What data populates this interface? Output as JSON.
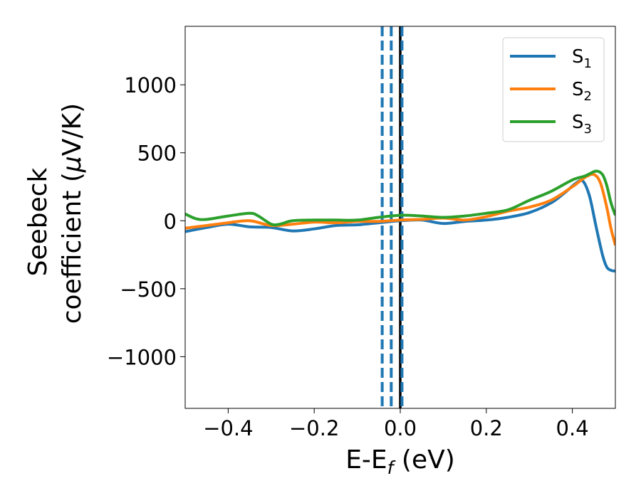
{
  "chart_data": {
    "type": "line",
    "title": "",
    "xlabel": {
      "base": "E-E",
      "sub": "f",
      "unit": " (eV)"
    },
    "ylabel": {
      "line1": "Seebeck",
      "line2_prefix": "coefficient  (",
      "mu": "μ",
      "line2_suffix": "V/K)"
    },
    "xlim": [
      -0.5,
      0.5
    ],
    "ylim": [
      -1380,
      1430
    ],
    "x_ticks": [
      -0.4,
      -0.2,
      0.0,
      0.2,
      0.4
    ],
    "x_tick_labels": [
      "−0.4",
      "−0.2",
      "0.0",
      "0.2",
      "0.4"
    ],
    "y_ticks": [
      -1000,
      -500,
      0,
      500,
      1000
    ],
    "y_tick_labels": [
      "−1000",
      "−500",
      "0",
      "500",
      "1000"
    ],
    "grid": false,
    "legend_position": "top-right",
    "vlines": [
      {
        "x": 0.0,
        "color": "#000000",
        "style": "solid"
      },
      {
        "x": -0.042,
        "color": "#1f77b4",
        "style": "dashed"
      },
      {
        "x": -0.021,
        "color": "#1f77b4",
        "style": "dashed"
      },
      {
        "x": 0.004,
        "color": "#1f77b4",
        "style": "dashed"
      }
    ],
    "series": [
      {
        "name": "S",
        "sub": "1",
        "color": "#1f77b4",
        "x": [
          -0.5,
          -0.45,
          -0.4,
          -0.35,
          -0.3,
          -0.25,
          -0.2,
          -0.15,
          -0.1,
          -0.05,
          0.0,
          0.05,
          0.1,
          0.15,
          0.2,
          0.25,
          0.3,
          0.35,
          0.38,
          0.41,
          0.425,
          0.44,
          0.455,
          0.47,
          0.48,
          0.49,
          0.5
        ],
        "y": [
          -80,
          -50,
          -25,
          -45,
          -50,
          -75,
          -60,
          -35,
          -30,
          -15,
          0,
          5,
          -20,
          -5,
          5,
          25,
          60,
          130,
          200,
          280,
          290,
          180,
          -40,
          -250,
          -340,
          -365,
          -370
        ]
      },
      {
        "name": "S",
        "sub": "2",
        "color": "#ff7f0e",
        "x": [
          -0.5,
          -0.45,
          -0.4,
          -0.35,
          -0.3,
          -0.25,
          -0.2,
          -0.15,
          -0.1,
          -0.05,
          0.0,
          0.05,
          0.1,
          0.15,
          0.2,
          0.25,
          0.3,
          0.35,
          0.4,
          0.43,
          0.45,
          0.465,
          0.48,
          0.49,
          0.5
        ],
        "y": [
          -55,
          -35,
          -15,
          0,
          -35,
          -25,
          -10,
          -15,
          -5,
          -5,
          5,
          10,
          20,
          5,
          30,
          70,
          100,
          150,
          250,
          320,
          340,
          280,
          100,
          -60,
          -180
        ]
      },
      {
        "name": "S",
        "sub": "3",
        "color": "#2ca02c",
        "x": [
          -0.5,
          -0.475,
          -0.45,
          -0.4,
          -0.35,
          -0.33,
          -0.3,
          -0.28,
          -0.25,
          -0.2,
          -0.15,
          -0.1,
          -0.05,
          0.0,
          0.05,
          0.1,
          0.15,
          0.2,
          0.25,
          0.3,
          0.35,
          0.4,
          0.43,
          0.455,
          0.47,
          0.48,
          0.49,
          0.5
        ],
        "y": [
          50,
          15,
          10,
          35,
          55,
          35,
          -25,
          -25,
          0,
          5,
          5,
          5,
          25,
          40,
          35,
          25,
          35,
          55,
          80,
          150,
          215,
          300,
          330,
          365,
          340,
          260,
          130,
          40
        ]
      }
    ]
  }
}
